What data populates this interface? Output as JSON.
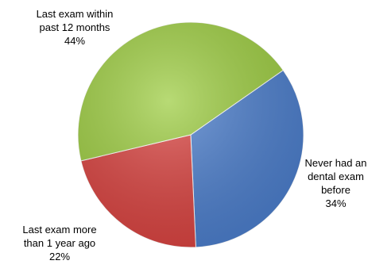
{
  "chart_data": {
    "type": "pie",
    "title": "",
    "slices": [
      {
        "label_lines": [
          "Never had an",
          "dental exam",
          "before"
        ],
        "value": 34,
        "value_label": "34%",
        "color": "#4a7dcc"
      },
      {
        "label_lines": [
          "Last exam more",
          "than 1 year ago"
        ],
        "value": 22,
        "value_label": "22%",
        "color": "#d9413e"
      },
      {
        "label_lines": [
          "Last exam within",
          "past 12 months"
        ],
        "value": 44,
        "value_label": "44%",
        "color": "#9ccc3f"
      }
    ]
  }
}
